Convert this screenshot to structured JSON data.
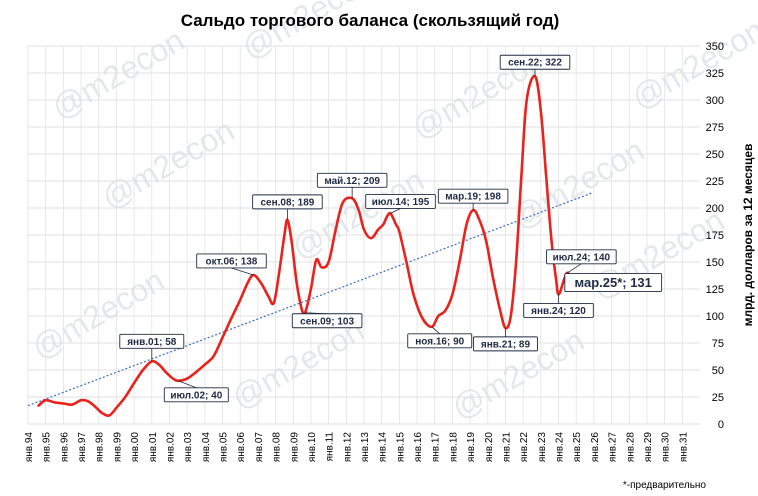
{
  "chart_data": {
    "type": "line",
    "title": "Сальдо торгового баланса (скользящий год)",
    "ylabel": "млрд. долларов за 12 месяцев",
    "ylim": [
      0,
      350
    ],
    "yticks": [
      0,
      25,
      50,
      75,
      100,
      125,
      150,
      175,
      200,
      225,
      250,
      275,
      300,
      325,
      350
    ],
    "xlim": [
      1994,
      2032
    ],
    "xticks": [
      "янв.94",
      "янв.95",
      "янв.96",
      "янв.97",
      "янв.98",
      "янв.99",
      "янв.00",
      "янв.01",
      "янв.02",
      "янв.03",
      "янв.04",
      "янв.05",
      "янв.06",
      "янв.07",
      "янв.08",
      "янв.09",
      "янв.10",
      "янв.11",
      "янв.12",
      "янв.13",
      "янв.14",
      "янв.15",
      "янв.16",
      "янв.17",
      "янв.18",
      "янв.19",
      "янв.20",
      "янв.21",
      "янв.22",
      "янв.23",
      "янв.24",
      "янв.25",
      "янв.26",
      "янв.27",
      "янв.28",
      "янв.29",
      "янв.30",
      "янв.31"
    ],
    "grid": true,
    "series": [
      {
        "color": "#e8221c",
        "points": [
          [
            1994.6,
            17
          ],
          [
            1995.0,
            22
          ],
          [
            1995.5,
            20
          ],
          [
            1996.0,
            19
          ],
          [
            1996.5,
            18
          ],
          [
            1997.0,
            22
          ],
          [
            1997.4,
            21
          ],
          [
            1997.8,
            16
          ],
          [
            1998.2,
            10
          ],
          [
            1998.6,
            8
          ],
          [
            1999.0,
            15
          ],
          [
            1999.5,
            25
          ],
          [
            2000.0,
            38
          ],
          [
            2000.5,
            50
          ],
          [
            2001.0,
            58
          ],
          [
            2001.4,
            55
          ],
          [
            2001.8,
            48
          ],
          [
            2002.2,
            42
          ],
          [
            2002.5,
            40
          ],
          [
            2003.0,
            42
          ],
          [
            2003.5,
            48
          ],
          [
            2004.0,
            55
          ],
          [
            2004.5,
            63
          ],
          [
            2005.0,
            80
          ],
          [
            2005.5,
            98
          ],
          [
            2006.0,
            115
          ],
          [
            2006.4,
            130
          ],
          [
            2006.75,
            138
          ],
          [
            2007.2,
            130
          ],
          [
            2007.6,
            118
          ],
          [
            2007.9,
            112
          ],
          [
            2008.2,
            140
          ],
          [
            2008.5,
            175
          ],
          [
            2008.67,
            189
          ],
          [
            2008.9,
            170
          ],
          [
            2009.2,
            130
          ],
          [
            2009.5,
            105
          ],
          [
            2009.67,
            103
          ],
          [
            2010.0,
            125
          ],
          [
            2010.3,
            152
          ],
          [
            2010.6,
            145
          ],
          [
            2011.0,
            150
          ],
          [
            2011.4,
            180
          ],
          [
            2011.8,
            205
          ],
          [
            2012.33,
            209
          ],
          [
            2012.7,
            198
          ],
          [
            2013.0,
            180
          ],
          [
            2013.4,
            172
          ],
          [
            2013.8,
            180
          ],
          [
            2014.1,
            185
          ],
          [
            2014.3,
            192
          ],
          [
            2014.5,
            195
          ],
          [
            2014.8,
            185
          ],
          [
            2015.0,
            178
          ],
          [
            2015.4,
            150
          ],
          [
            2015.8,
            120
          ],
          [
            2016.3,
            98
          ],
          [
            2016.83,
            90
          ],
          [
            2017.2,
            100
          ],
          [
            2017.6,
            105
          ],
          [
            2018.0,
            120
          ],
          [
            2018.4,
            150
          ],
          [
            2018.8,
            185
          ],
          [
            2019.17,
            198
          ],
          [
            2019.5,
            190
          ],
          [
            2019.9,
            170
          ],
          [
            2020.3,
            135
          ],
          [
            2020.7,
            105
          ],
          [
            2021.0,
            89
          ],
          [
            2021.3,
            100
          ],
          [
            2021.6,
            150
          ],
          [
            2021.9,
            230
          ],
          [
            2022.2,
            300
          ],
          [
            2022.67,
            322
          ],
          [
            2023.0,
            290
          ],
          [
            2023.3,
            230
          ],
          [
            2023.6,
            170
          ],
          [
            2023.85,
            135
          ],
          [
            2024.0,
            120
          ],
          [
            2024.3,
            133
          ],
          [
            2024.5,
            140
          ],
          [
            2024.8,
            134
          ],
          [
            2025.0,
            132
          ],
          [
            2025.17,
            131
          ]
        ]
      }
    ],
    "trendline": {
      "color": "#3a6fc4",
      "from": [
        1994,
        17
      ],
      "to": [
        2025.9,
        214
      ]
    },
    "annotations": [
      {
        "label": "янв.01; 58",
        "x": 2001.0,
        "y": 58
      },
      {
        "label": "июл.02; 40",
        "x": 2002.5,
        "y": 40
      },
      {
        "label": "окт.06; 138",
        "x": 2006.75,
        "y": 138
      },
      {
        "label": "сен.08; 189",
        "x": 2008.67,
        "y": 189
      },
      {
        "label": "сен.09; 103",
        "x": 2009.67,
        "y": 103
      },
      {
        "label": "май.12; 209",
        "x": 2012.33,
        "y": 209
      },
      {
        "label": "июл.14; 195",
        "x": 2014.5,
        "y": 195
      },
      {
        "label": "ноя.16; 90",
        "x": 2016.83,
        "y": 90
      },
      {
        "label": "мар.19; 198",
        "x": 2019.17,
        "y": 198
      },
      {
        "label": "янв.21; 89",
        "x": 2021.0,
        "y": 89
      },
      {
        "label": "сен.22; 322",
        "x": 2022.67,
        "y": 322
      },
      {
        "label": "янв.24; 120",
        "x": 2024.0,
        "y": 120
      },
      {
        "label": "июл.24; 140",
        "x": 2024.5,
        "y": 140
      },
      {
        "label": "мар.25*; 131",
        "x": 2025.17,
        "y": 131
      }
    ],
    "footnote": "*-предварительно",
    "watermark": "@m2econ"
  }
}
